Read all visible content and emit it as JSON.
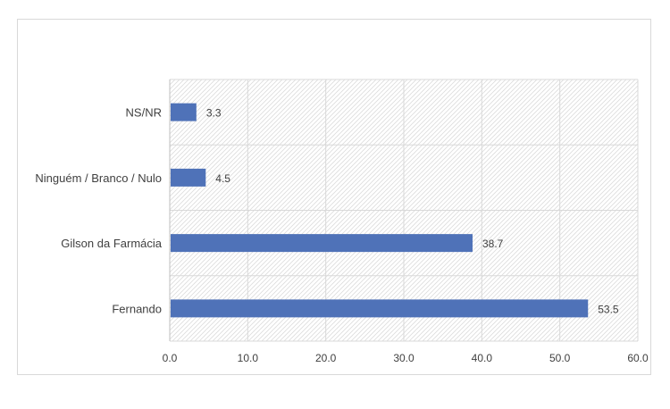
{
  "chart_data": {
    "type": "bar",
    "orientation": "horizontal",
    "title": "",
    "xlabel": "",
    "ylabel": "",
    "categories": [
      "NS/NR",
      "Ninguém / Branco / Nulo",
      "Gilson da Farmácia",
      "Fernando"
    ],
    "values": [
      3.3,
      4.5,
      38.7,
      53.5
    ],
    "data_labels": [
      "3.3",
      "4.5",
      "38.7",
      "53.5"
    ],
    "xlim": [
      0,
      60
    ],
    "x_ticks": [
      0,
      10,
      20,
      30,
      40,
      50,
      60
    ],
    "x_tick_labels": [
      "0.0",
      "10.0",
      "20.0",
      "30.0",
      "40.0",
      "50.0",
      "60.0"
    ],
    "grid": true,
    "plot_background": "diagonal hatch",
    "legend": "none",
    "colors": {
      "bar": "#4f72b8",
      "grid": "#d9d9d9",
      "hatch": "#dcdcdc",
      "text": "#404040"
    }
  }
}
